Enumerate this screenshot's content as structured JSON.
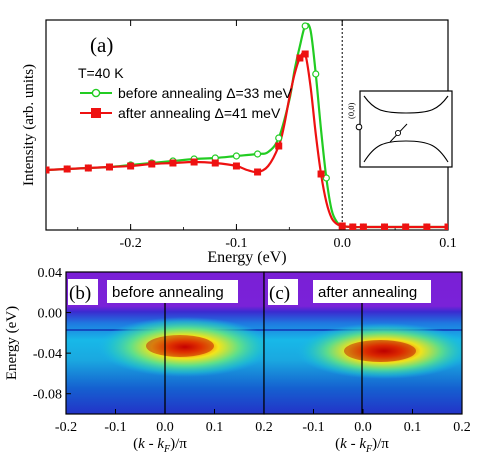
{
  "chart_data": [
    {
      "type": "line",
      "panel_label": "(a)",
      "xlabel": "Energy (eV)",
      "ylabel": "Intensity (arb. units)",
      "xlim": [
        -0.28,
        0.1
      ],
      "ylim": [
        0,
        1.05
      ],
      "x_ticks": [
        -0.2,
        -0.1,
        0.0,
        0.1
      ],
      "x_tick_labels": [
        "-0.2",
        "-0.1",
        "0.0",
        "0.1"
      ],
      "y_ticks_shown": false,
      "annotation": "T=40 K",
      "fermi_level_line": 0.0,
      "legend_position": "top-left",
      "series": [
        {
          "name": "before annealing Δ=33 meV",
          "color": "#22cc22",
          "marker": "open-circle",
          "x": [
            -0.28,
            -0.26,
            -0.24,
            -0.22,
            -0.2,
            -0.18,
            -0.16,
            -0.14,
            -0.12,
            -0.1,
            -0.08,
            -0.07,
            -0.06,
            -0.05,
            -0.045,
            -0.04,
            -0.035,
            -0.03,
            -0.025,
            -0.02,
            -0.015,
            -0.01,
            -0.005,
            0.0,
            0.01,
            0.02,
            0.04,
            0.06,
            0.08,
            0.1
          ],
          "y": [
            0.3,
            0.305,
            0.31,
            0.315,
            0.325,
            0.335,
            0.345,
            0.355,
            0.36,
            0.37,
            0.38,
            0.39,
            0.46,
            0.65,
            0.8,
            0.92,
            1.02,
            1.0,
            0.78,
            0.5,
            0.26,
            0.1,
            0.04,
            0.02,
            0.015,
            0.015,
            0.015,
            0.015,
            0.015,
            0.015
          ]
        },
        {
          "name": "after annealing Δ=41 meV",
          "color": "#ee1111",
          "marker": "filled-square",
          "x": [
            -0.28,
            -0.26,
            -0.24,
            -0.22,
            -0.2,
            -0.18,
            -0.16,
            -0.14,
            -0.12,
            -0.1,
            -0.09,
            -0.08,
            -0.07,
            -0.06,
            -0.055,
            -0.05,
            -0.045,
            -0.04,
            -0.035,
            -0.03,
            -0.025,
            -0.02,
            -0.015,
            -0.01,
            -0.005,
            0.0,
            0.01,
            0.02,
            0.04,
            0.06,
            0.08,
            0.1
          ],
          "y": [
            0.3,
            0.305,
            0.31,
            0.315,
            0.32,
            0.33,
            0.335,
            0.34,
            0.335,
            0.32,
            0.3,
            0.29,
            0.32,
            0.42,
            0.52,
            0.66,
            0.78,
            0.86,
            0.88,
            0.72,
            0.48,
            0.28,
            0.14,
            0.06,
            0.03,
            0.02,
            0.015,
            0.015,
            0.015,
            0.015,
            0.015,
            0.015
          ]
        }
      ],
      "inset": {
        "point_label": "(0,0)"
      }
    },
    {
      "type": "heatmap",
      "panel_label": "(b)",
      "title": "before annealing",
      "xlabel": "(k - kF)/π",
      "ylabel": "Energy (eV)",
      "xlim": [
        -0.2,
        0.2
      ],
      "ylim": [
        -0.1,
        0.04
      ],
      "x_ticks": [
        -0.2,
        -0.1,
        0.0,
        0.1,
        0.2
      ],
      "x_tick_labels": [
        "-0.2",
        "-0.1",
        "0.0",
        "0.1",
        "0.2"
      ],
      "y_ticks": [
        0.04,
        0.0,
        -0.04,
        -0.08
      ],
      "y_tick_labels": [
        "0.04",
        "0.00",
        "-0.04",
        "-0.08"
      ],
      "hotspot": {
        "k": 0.03,
        "energy": -0.033
      },
      "vertical_line_k": 0.0
    },
    {
      "type": "heatmap",
      "panel_label": "(c)",
      "title": "after annealing",
      "xlabel": "(k - kF)/π",
      "xlim": [
        -0.2,
        0.2
      ],
      "ylim": [
        -0.1,
        0.04
      ],
      "x_ticks": [
        -0.1,
        0.0,
        0.1,
        0.2
      ],
      "x_tick_labels": [
        "-0.1",
        "0.0",
        "0.1",
        "0.2"
      ],
      "hotspot": {
        "k": 0.03,
        "energy": -0.04
      },
      "vertical_line_k": 0.0
    }
  ]
}
